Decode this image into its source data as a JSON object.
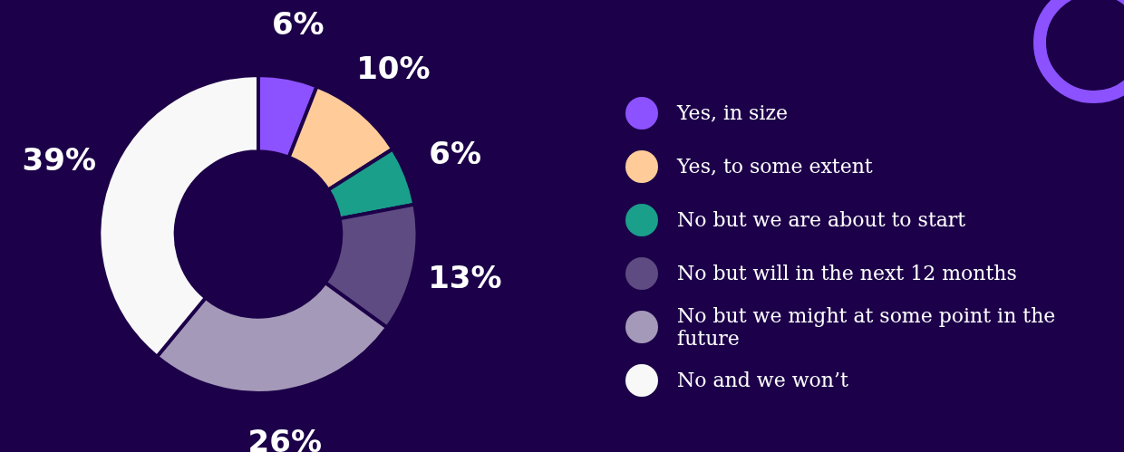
{
  "chart_data": {
    "type": "donut",
    "categories": [
      "Yes, in size",
      "Yes, to some extent",
      "No but we are about to start",
      "No but will in the next 12 months",
      "No but we might at some point in the future",
      "No and we won’t"
    ],
    "values": [
      6,
      10,
      6,
      13,
      26,
      39
    ],
    "colors": [
      "#8c52ff",
      "#ffcc99",
      "#1a9f8a",
      "#5e4b82",
      "#a599b9",
      "#f8f8f8"
    ],
    "value_labels": [
      "6%",
      "10%",
      "6%",
      "13%",
      "26%",
      "39%"
    ],
    "legend": "right"
  }
}
